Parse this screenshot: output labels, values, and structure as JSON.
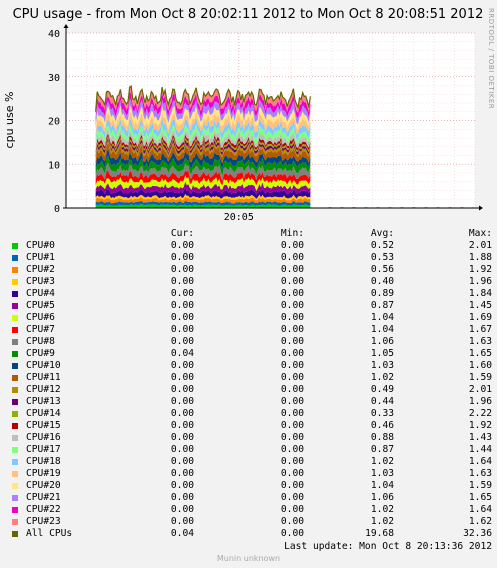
{
  "chart_data": {
    "type": "area",
    "title": "CPU usage - from Mon Oct  8 20:02:11 2012 to Mon Oct  8 20:08:51 2012",
    "ylabel": "cpu use %",
    "xlabel": "",
    "ylim": [
      0,
      40
    ],
    "y_ticks": [
      "0",
      "10",
      "20",
      "30",
      "40"
    ],
    "x_ticks": [
      "20:05"
    ],
    "grid": true,
    "watermark": "RRDTOOL / TOBI OETIKER",
    "data_window": [
      "20:02:40",
      "20:06:10"
    ],
    "total_range": [
      22,
      31
    ],
    "series": [
      {
        "name": "CPU#0",
        "color": "#00cc00"
      },
      {
        "name": "CPU#1",
        "color": "#0066b3"
      },
      {
        "name": "CPU#2",
        "color": "#ff8000"
      },
      {
        "name": "CPU#3",
        "color": "#ffcc00"
      },
      {
        "name": "CPU#4",
        "color": "#330099"
      },
      {
        "name": "CPU#5",
        "color": "#990099"
      },
      {
        "name": "CPU#6",
        "color": "#ccff00"
      },
      {
        "name": "CPU#7",
        "color": "#ff0000"
      },
      {
        "name": "CPU#8",
        "color": "#808080"
      },
      {
        "name": "CPU#9",
        "color": "#008f00"
      },
      {
        "name": "CPU#10",
        "color": "#00487d"
      },
      {
        "name": "CPU#11",
        "color": "#b35a00"
      },
      {
        "name": "CPU#12",
        "color": "#b38f00"
      },
      {
        "name": "CPU#13",
        "color": "#6b006b"
      },
      {
        "name": "CPU#14",
        "color": "#8fb300"
      },
      {
        "name": "CPU#15",
        "color": "#b30000"
      },
      {
        "name": "CPU#16",
        "color": "#bebebe"
      },
      {
        "name": "CPU#17",
        "color": "#80ff80"
      },
      {
        "name": "CPU#18",
        "color": "#80c9ff"
      },
      {
        "name": "CPU#19",
        "color": "#ffc080"
      },
      {
        "name": "CPU#20",
        "color": "#ffe680"
      },
      {
        "name": "CPU#21",
        "color": "#aa80ff"
      },
      {
        "name": "CPU#22",
        "color": "#ee00cc"
      },
      {
        "name": "CPU#23",
        "color": "#ff8080"
      },
      {
        "name": "All CPUs",
        "color": "#666600"
      }
    ]
  },
  "legend": {
    "headers": {
      "cur": "Cur:",
      "min": "Min:",
      "avg": "Avg:",
      "max": "Max:"
    },
    "rows": [
      {
        "name": "CPU#0",
        "cur": "0.00",
        "min": "0.00",
        "avg": "0.52",
        "max": "2.01"
      },
      {
        "name": "CPU#1",
        "cur": "0.00",
        "min": "0.00",
        "avg": "0.53",
        "max": "1.88"
      },
      {
        "name": "CPU#2",
        "cur": "0.00",
        "min": "0.00",
        "avg": "0.56",
        "max": "1.92"
      },
      {
        "name": "CPU#3",
        "cur": "0.00",
        "min": "0.00",
        "avg": "0.40",
        "max": "1.96"
      },
      {
        "name": "CPU#4",
        "cur": "0.00",
        "min": "0.00",
        "avg": "0.89",
        "max": "1.84"
      },
      {
        "name": "CPU#5",
        "cur": "0.00",
        "min": "0.00",
        "avg": "0.87",
        "max": "1.45"
      },
      {
        "name": "CPU#6",
        "cur": "0.00",
        "min": "0.00",
        "avg": "1.04",
        "max": "1.69"
      },
      {
        "name": "CPU#7",
        "cur": "0.00",
        "min": "0.00",
        "avg": "1.04",
        "max": "1.67"
      },
      {
        "name": "CPU#8",
        "cur": "0.00",
        "min": "0.00",
        "avg": "1.06",
        "max": "1.63"
      },
      {
        "name": "CPU#9",
        "cur": "0.04",
        "min": "0.00",
        "avg": "1.05",
        "max": "1.65"
      },
      {
        "name": "CPU#10",
        "cur": "0.00",
        "min": "0.00",
        "avg": "1.03",
        "max": "1.60"
      },
      {
        "name": "CPU#11",
        "cur": "0.00",
        "min": "0.00",
        "avg": "1.02",
        "max": "1.59"
      },
      {
        "name": "CPU#12",
        "cur": "0.00",
        "min": "0.00",
        "avg": "0.49",
        "max": "2.01"
      },
      {
        "name": "CPU#13",
        "cur": "0.00",
        "min": "0.00",
        "avg": "0.44",
        "max": "1.96"
      },
      {
        "name": "CPU#14",
        "cur": "0.00",
        "min": "0.00",
        "avg": "0.33",
        "max": "2.22"
      },
      {
        "name": "CPU#15",
        "cur": "0.00",
        "min": "0.00",
        "avg": "0.46",
        "max": "1.92"
      },
      {
        "name": "CPU#16",
        "cur": "0.00",
        "min": "0.00",
        "avg": "0.88",
        "max": "1.43"
      },
      {
        "name": "CPU#17",
        "cur": "0.00",
        "min": "0.00",
        "avg": "0.87",
        "max": "1.44"
      },
      {
        "name": "CPU#18",
        "cur": "0.00",
        "min": "0.00",
        "avg": "1.02",
        "max": "1.64"
      },
      {
        "name": "CPU#19",
        "cur": "0.00",
        "min": "0.00",
        "avg": "1.03",
        "max": "1.63"
      },
      {
        "name": "CPU#20",
        "cur": "0.00",
        "min": "0.00",
        "avg": "1.04",
        "max": "1.59"
      },
      {
        "name": "CPU#21",
        "cur": "0.00",
        "min": "0.00",
        "avg": "1.06",
        "max": "1.65"
      },
      {
        "name": "CPU#22",
        "cur": "0.00",
        "min": "0.00",
        "avg": "1.02",
        "max": "1.64"
      },
      {
        "name": "CPU#23",
        "cur": "0.00",
        "min": "0.00",
        "avg": "1.02",
        "max": "1.62"
      },
      {
        "name": "All CPUs",
        "cur": "0.04",
        "min": "0.00",
        "avg": "19.68",
        "max": "32.36"
      }
    ]
  },
  "last_update": "Last update:  Mon Oct  8 20:13:36 2012",
  "footer": "Munin unknown"
}
